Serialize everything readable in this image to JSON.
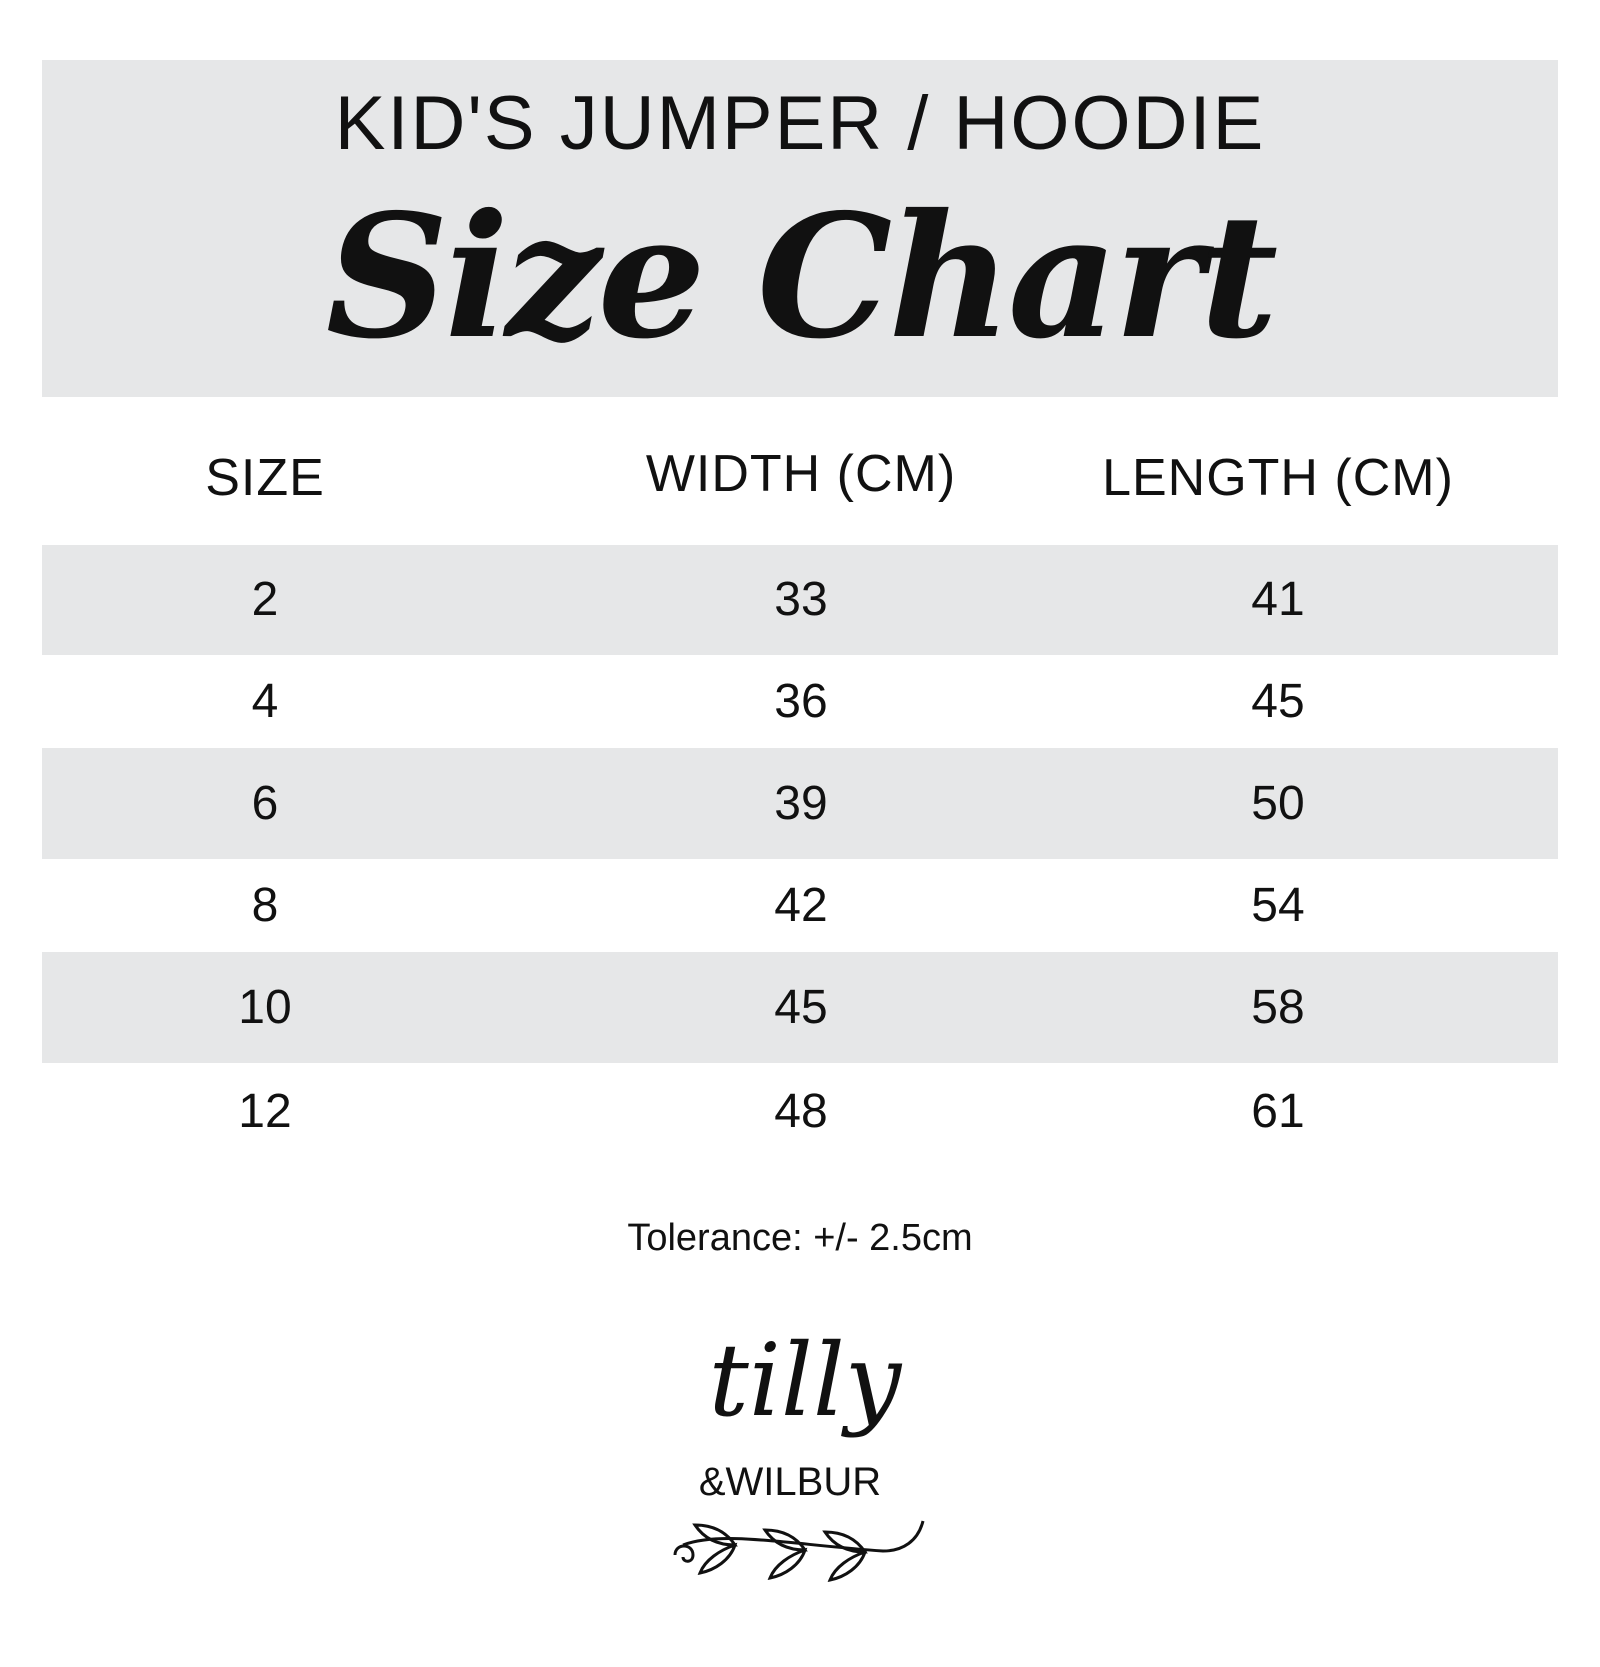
{
  "header": {
    "kicker": "KID'S JUMPER / HOODIE",
    "title": "Size Chart",
    "background": "#e6e7e8"
  },
  "table": {
    "columns": [
      "SIZE",
      "WIDTH (CM)",
      "LENGTH (CM)"
    ],
    "rows": [
      [
        "2",
        "33",
        "41"
      ],
      [
        "4",
        "36",
        "45"
      ],
      [
        "6",
        "39",
        "50"
      ],
      [
        "8",
        "42",
        "54"
      ],
      [
        "10",
        "45",
        "58"
      ],
      [
        "12",
        "48",
        "61"
      ]
    ]
  },
  "footer": {
    "tolerance": "Tolerance: +/- 2.5cm"
  },
  "logo": {
    "line1": "tilly",
    "line2": "&WILBUR"
  }
}
